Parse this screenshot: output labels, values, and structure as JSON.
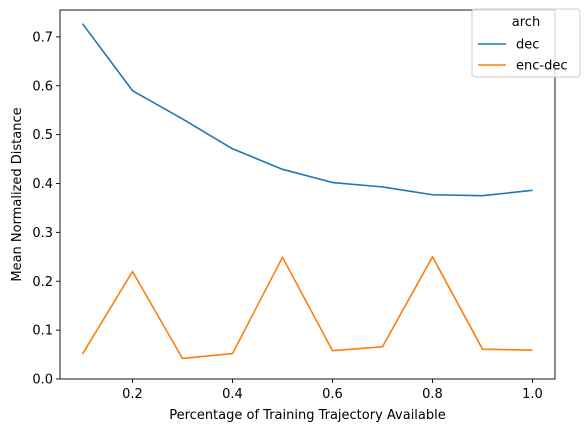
{
  "chart_data": {
    "type": "line",
    "xlabel": "Percentage of Training Trajectory Available",
    "ylabel": "Mean Normalized Distance",
    "xlim": [
      0.055,
      1.045
    ],
    "ylim": [
      0.0,
      0.755
    ],
    "xticks": [
      0.2,
      0.4,
      0.6,
      0.8,
      1.0
    ],
    "xtick_labels": [
      "0.2",
      "0.4",
      "0.6",
      "0.8",
      "1.0"
    ],
    "yticks": [
      0.0,
      0.1,
      0.2,
      0.3,
      0.4,
      0.5,
      0.6,
      0.7
    ],
    "ytick_labels": [
      "0.0",
      "0.1",
      "0.2",
      "0.3",
      "0.4",
      "0.5",
      "0.6",
      "0.7"
    ],
    "grid": false,
    "legend": {
      "title": "arch",
      "placement": "top-right"
    },
    "x": [
      0.1,
      0.2,
      0.3,
      0.4,
      0.5,
      0.6,
      0.7,
      0.8,
      0.9,
      1.0
    ],
    "series": [
      {
        "name": "dec",
        "color": "#1f77b4",
        "values": [
          0.727,
          0.59,
          0.532,
          0.471,
          0.429,
          0.402,
          0.393,
          0.377,
          0.375,
          0.386
        ]
      },
      {
        "name": "enc-dec",
        "color": "#ff7f0e",
        "values": [
          0.051,
          0.22,
          0.042,
          0.052,
          0.249,
          0.058,
          0.066,
          0.25,
          0.061,
          0.059
        ]
      }
    ]
  }
}
